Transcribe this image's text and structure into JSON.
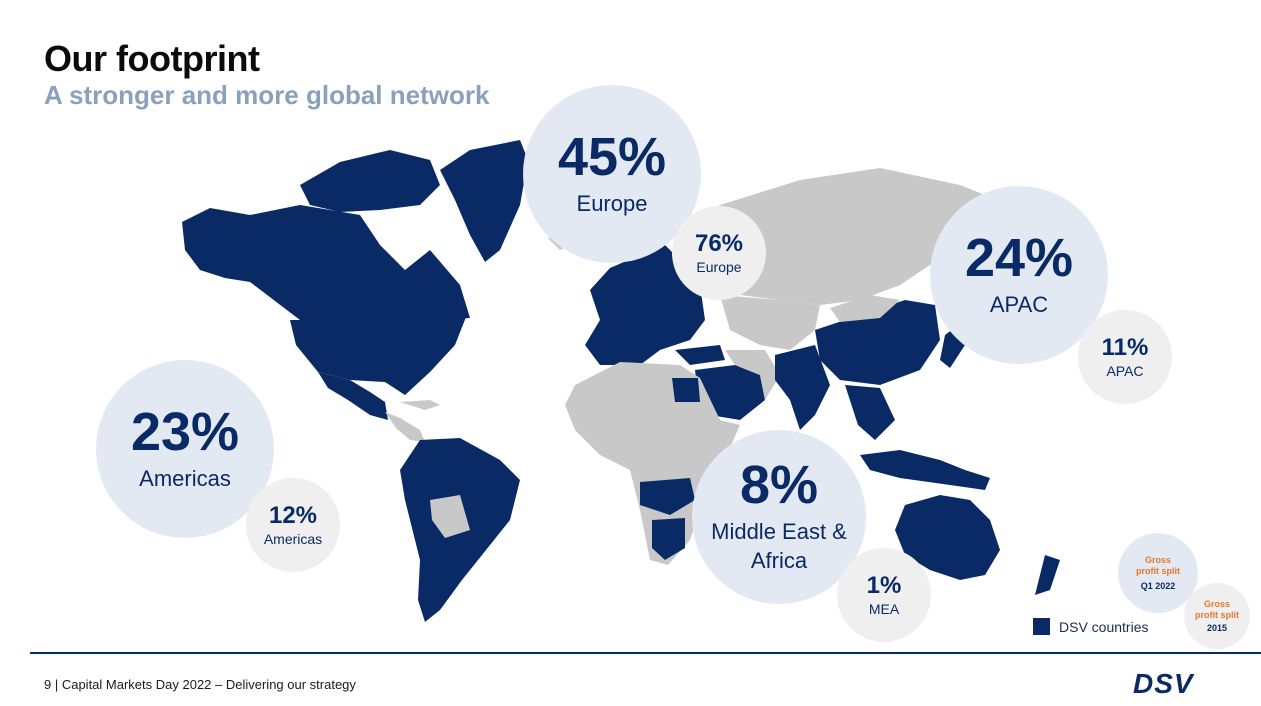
{
  "slide": {
    "title": "Our footprint",
    "subtitle": "A stronger and more global network"
  },
  "bubbles": {
    "europe": {
      "value": "45%",
      "label": "Europe"
    },
    "europe_2015": {
      "value": "76%",
      "label": "Europe"
    },
    "apac": {
      "value": "24%",
      "label": "APAC"
    },
    "apac_2015": {
      "value": "11%",
      "label": "APAC"
    },
    "americas": {
      "value": "23%",
      "label": "Americas"
    },
    "americas_2015": {
      "value": "12%",
      "label": "Americas"
    },
    "mea": {
      "value": "8%",
      "label_line1": "Middle East &",
      "label_line2": "Africa"
    },
    "mea_2015": {
      "value": "1%",
      "label": "MEA"
    }
  },
  "key": {
    "q1_2022": {
      "line1": "Gross",
      "line2": "profit split",
      "period": "Q1 2022"
    },
    "y2015": {
      "line1": "Gross",
      "line2": "profit split",
      "period": "2015"
    }
  },
  "legend": {
    "label": "DSV countries"
  },
  "footer": {
    "text": "9 | Capital Markets Day 2022 – Delivering our strategy"
  },
  "logo": {
    "text": "DSV"
  },
  "colors": {
    "dsv_navy": "#0a2a66",
    "other_countries": "#c8c8c8",
    "accent_orange": "#e8762d"
  }
}
